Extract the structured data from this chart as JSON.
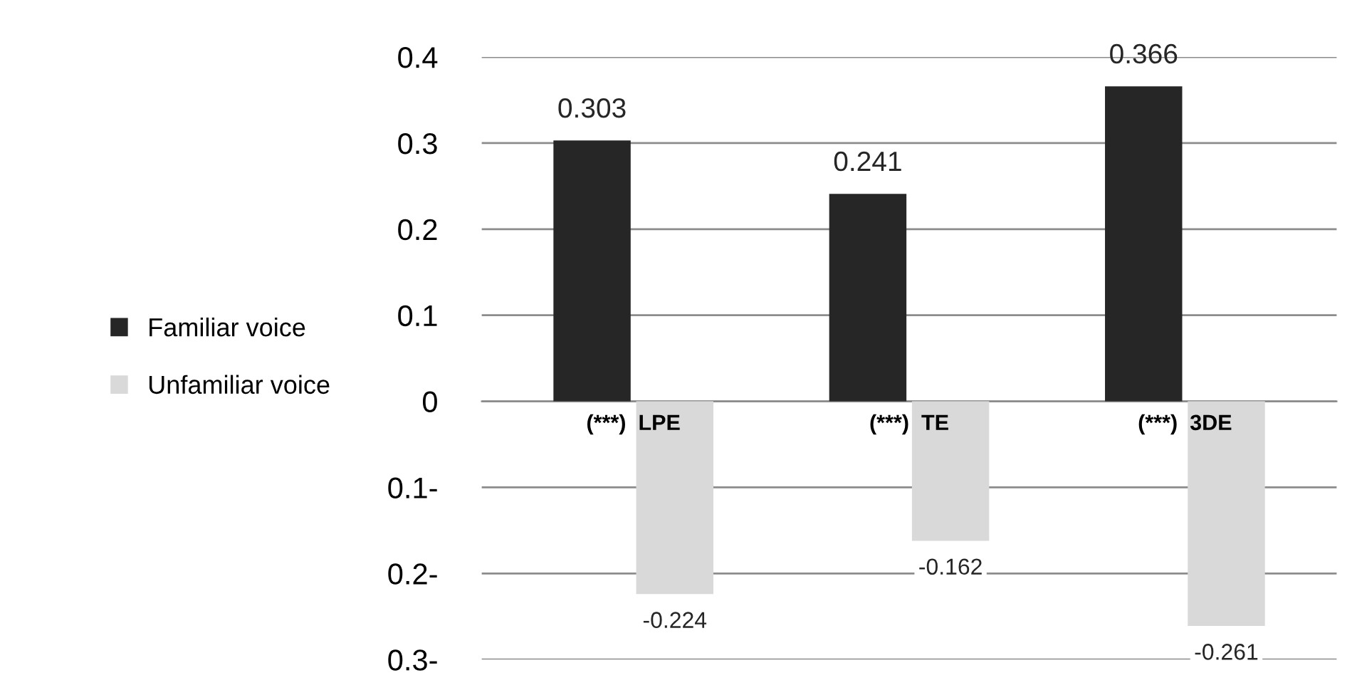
{
  "chart_data": {
    "type": "bar",
    "categories": [
      "(***)  LPE",
      "(***)  TE",
      "(***)  3DE"
    ],
    "series": [
      {
        "name": "Familiar voice",
        "color": "#262626",
        "values": [
          0.303,
          0.241,
          0.366
        ]
      },
      {
        "name": "Unfamiliar voice",
        "color": "#d9d9d9",
        "values": [
          -0.224,
          -0.162,
          -0.261
        ]
      }
    ],
    "ylim": [
      -0.3,
      0.4
    ],
    "yticks": [
      {
        "value": -0.3,
        "label": "0.3-"
      },
      {
        "value": -0.2,
        "label": "0.2-"
      },
      {
        "value": -0.1,
        "label": "0.1-"
      },
      0,
      0.1,
      0.2,
      0.3,
      0.4
    ],
    "grid": "y",
    "legend": "left",
    "data_labels": true
  }
}
